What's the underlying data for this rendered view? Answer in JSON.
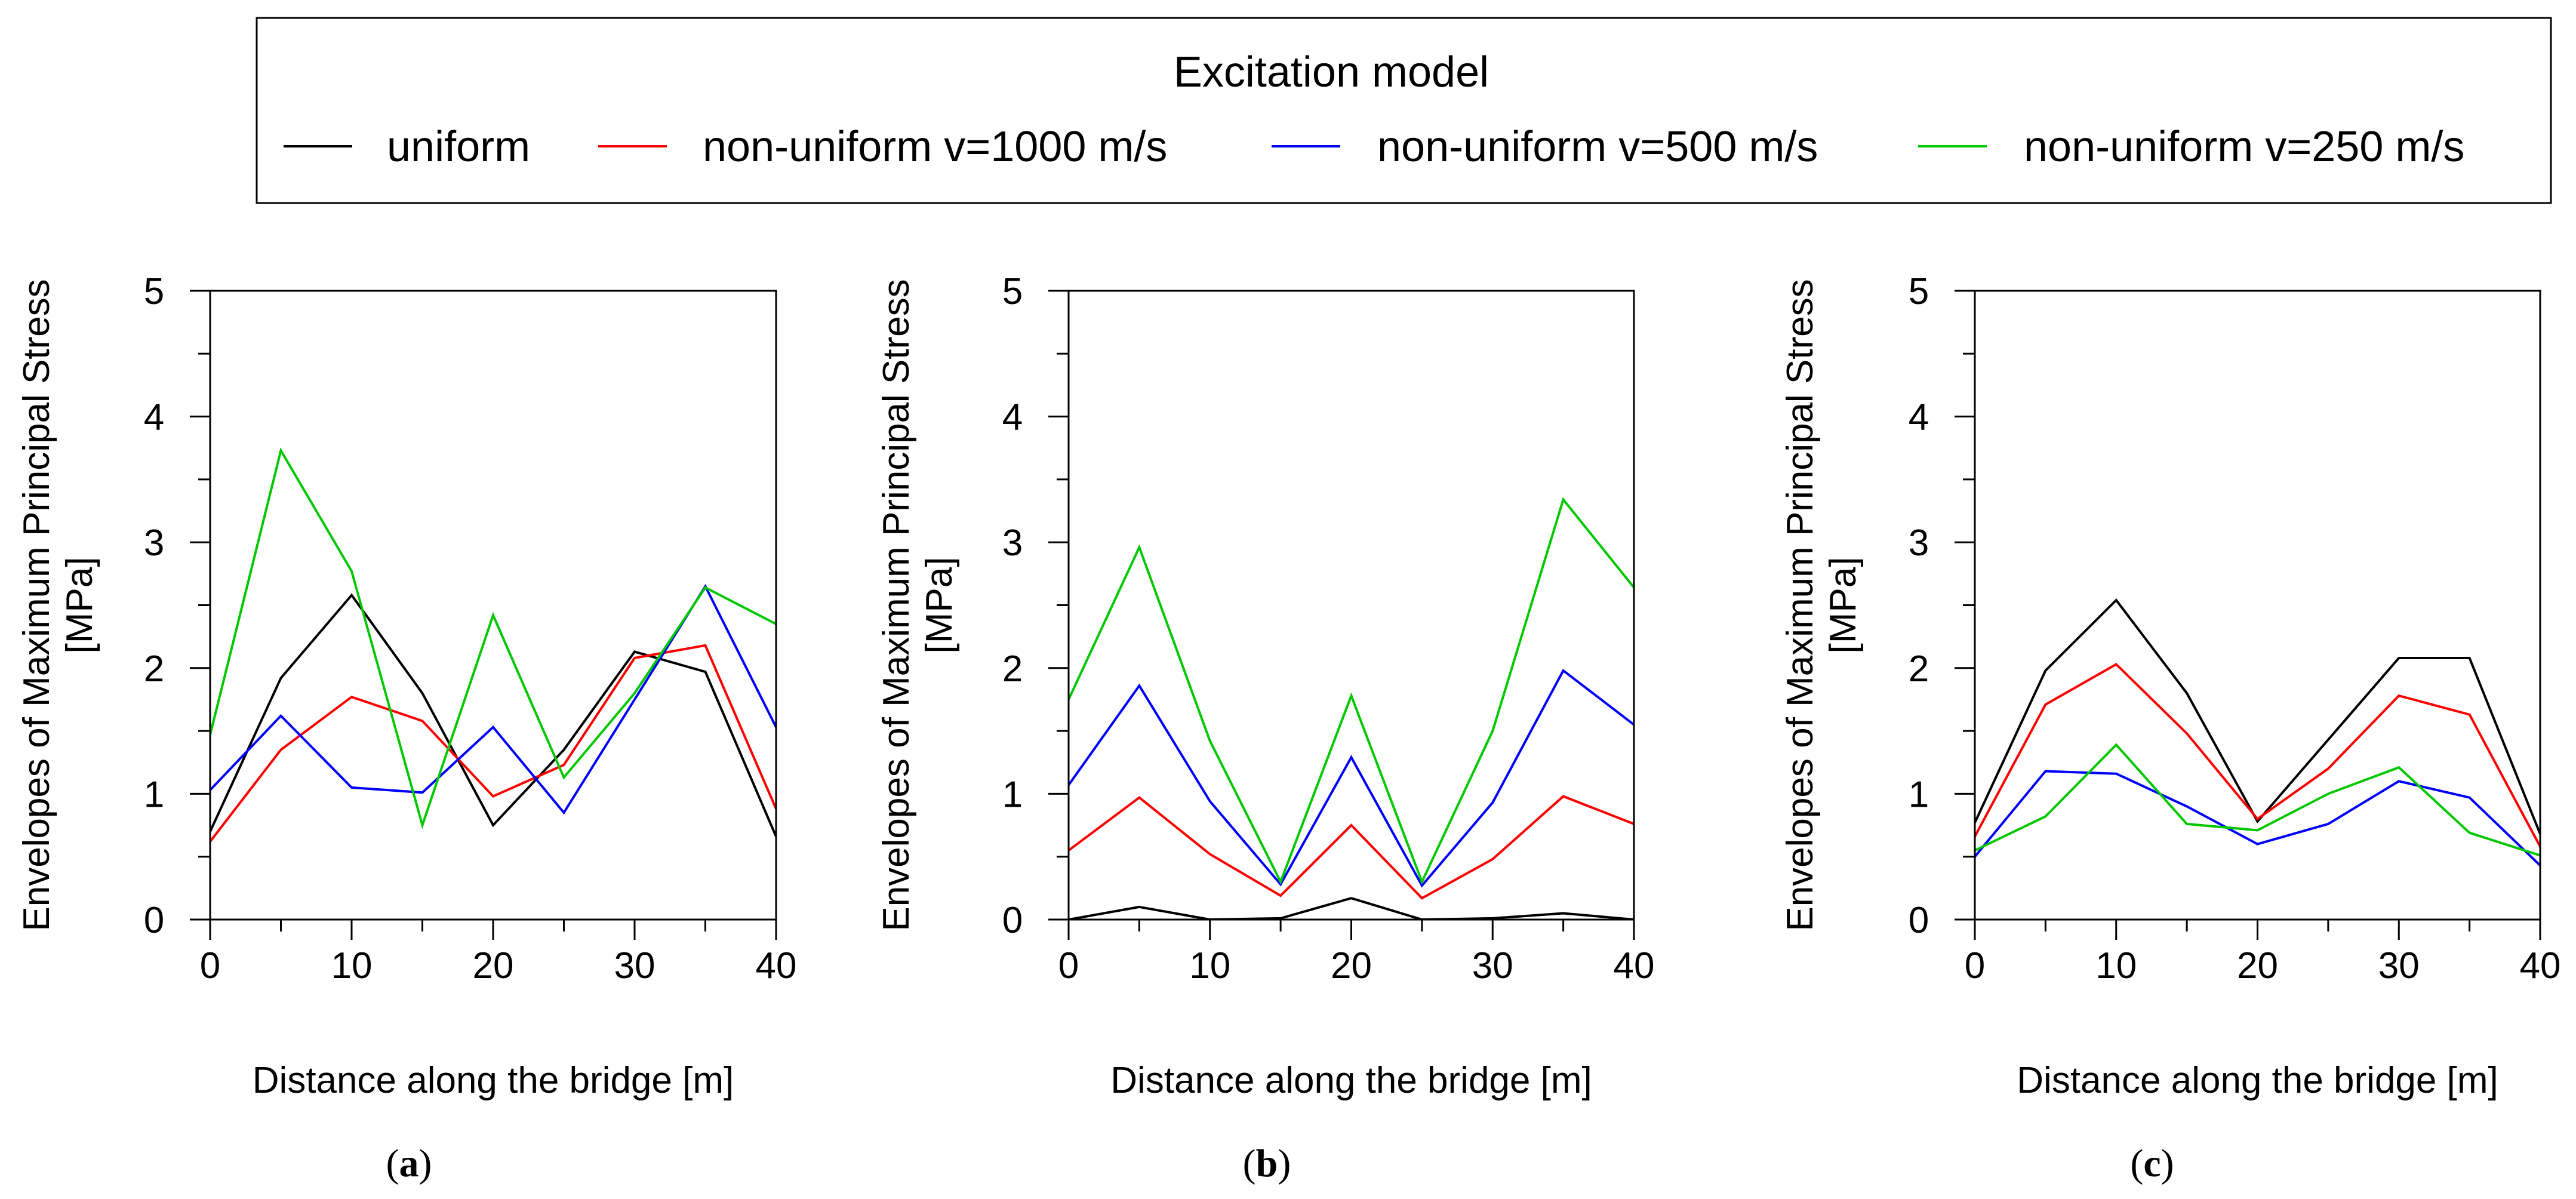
{
  "legend": {
    "title": "Excitation model"
  },
  "series_meta": [
    {
      "name": "uniform",
      "color": "#000000"
    },
    {
      "name": "non-uniform v=1000 m/s",
      "color": "#ff0000"
    },
    {
      "name": "non-uniform v=500 m/s",
      "color": "#0000ff"
    },
    {
      "name": "non-uniform v=250 m/s",
      "color": "#00c800"
    }
  ],
  "chart_data": [
    {
      "type": "line",
      "panel": "a",
      "title": "",
      "xlabel": "Distance along the bridge [m]",
      "ylabel_line1": "Envelopes of Maximum Principal Stress",
      "ylabel_line2": "[MPa]",
      "xlim": [
        0,
        40
      ],
      "ylim": [
        0,
        5
      ],
      "xticks": [
        0,
        10,
        20,
        30,
        40
      ],
      "yticks": [
        0,
        1,
        2,
        3,
        4,
        5
      ],
      "x": [
        0,
        5,
        10,
        15,
        20,
        25,
        30,
        35,
        40
      ],
      "series": [
        {
          "name": "uniform",
          "values": [
            0.7,
            1.92,
            2.58,
            1.8,
            0.75,
            1.35,
            2.13,
            1.97,
            0.66
          ]
        },
        {
          "name": "non-uniform v=1000 m/s",
          "values": [
            0.62,
            1.35,
            1.77,
            1.58,
            0.98,
            1.23,
            2.08,
            2.18,
            0.88
          ]
        },
        {
          "name": "non-uniform v=500 m/s",
          "values": [
            1.03,
            1.62,
            1.05,
            1.01,
            1.53,
            0.85,
            1.75,
            2.65,
            1.53
          ]
        },
        {
          "name": "non-uniform v=250 m/s",
          "values": [
            1.47,
            3.73,
            2.77,
            0.75,
            2.42,
            1.13,
            1.8,
            2.64,
            2.35
          ]
        }
      ],
      "label_prefix": "(",
      "label_letter": "a",
      "label_suffix": ")"
    },
    {
      "type": "line",
      "panel": "b",
      "title": "",
      "xlabel": "Distance along the bridge [m]",
      "ylabel_line1": "Envelopes of Maximum Principal Stress",
      "ylabel_line2": "[MPa]",
      "xlim": [
        0,
        40
      ],
      "ylim": [
        0,
        5
      ],
      "xticks": [
        0,
        10,
        20,
        30,
        40
      ],
      "yticks": [
        0,
        1,
        2,
        3,
        4,
        5
      ],
      "x": [
        0,
        5,
        10,
        15,
        20,
        25,
        30,
        35,
        40
      ],
      "series": [
        {
          "name": "uniform",
          "values": [
            0.0,
            0.1,
            0.0,
            0.01,
            0.17,
            0.0,
            0.01,
            0.05,
            0.0
          ]
        },
        {
          "name": "non-uniform v=1000 m/s",
          "values": [
            0.55,
            0.97,
            0.52,
            0.19,
            0.75,
            0.17,
            0.48,
            0.98,
            0.76
          ]
        },
        {
          "name": "non-uniform v=500 m/s",
          "values": [
            1.07,
            1.86,
            0.94,
            0.28,
            1.29,
            0.27,
            0.93,
            1.98,
            1.55
          ]
        },
        {
          "name": "non-uniform v=250 m/s",
          "values": [
            1.75,
            2.96,
            1.42,
            0.3,
            1.78,
            0.3,
            1.5,
            3.34,
            2.64
          ]
        }
      ],
      "label_prefix": "(",
      "label_letter": "b",
      "label_suffix": ")"
    },
    {
      "type": "line",
      "panel": "c",
      "title": "",
      "xlabel": "Distance along the bridge [m]",
      "ylabel_line1": "Envelopes of Maximum Principal Stress",
      "ylabel_line2": "[MPa]",
      "xlim": [
        0,
        40
      ],
      "ylim": [
        0,
        5
      ],
      "xticks": [
        0,
        10,
        20,
        30,
        40
      ],
      "yticks": [
        0,
        1,
        2,
        3,
        4,
        5
      ],
      "x": [
        0,
        5,
        10,
        15,
        20,
        25,
        30,
        35,
        40
      ],
      "series": [
        {
          "name": "uniform",
          "values": [
            0.77,
            1.98,
            2.54,
            1.8,
            0.78,
            1.43,
            2.08,
            2.08,
            0.68
          ]
        },
        {
          "name": "non-uniform v=1000 m/s",
          "values": [
            0.66,
            1.71,
            2.03,
            1.48,
            0.8,
            1.2,
            1.78,
            1.63,
            0.58
          ]
        },
        {
          "name": "non-uniform v=500 m/s",
          "values": [
            0.5,
            1.18,
            1.16,
            0.9,
            0.6,
            0.76,
            1.1,
            0.97,
            0.43
          ]
        },
        {
          "name": "non-uniform v=250 m/s",
          "values": [
            0.55,
            0.82,
            1.39,
            0.76,
            0.71,
            1.0,
            1.21,
            0.69,
            0.51
          ]
        }
      ],
      "label_prefix": "(",
      "label_letter": "c",
      "label_suffix": ")"
    }
  ]
}
